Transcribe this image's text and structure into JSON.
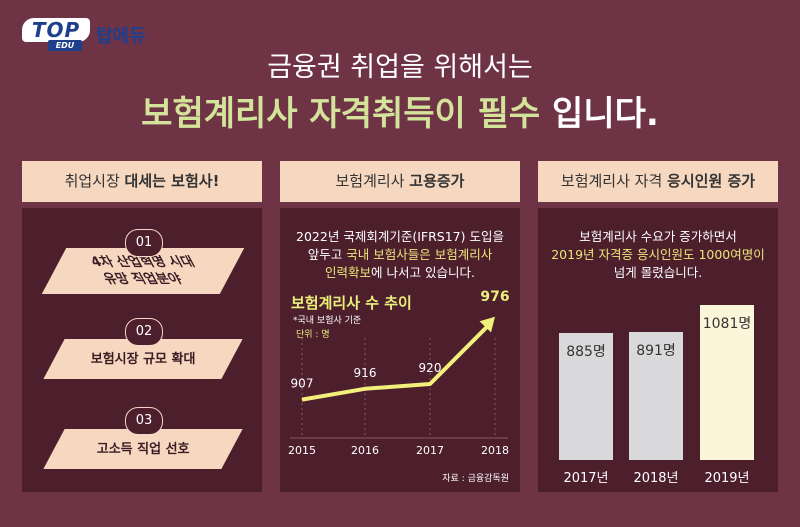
{
  "logo": {
    "mark": "TOP",
    "sub": "EDU",
    "name": "탑에듀"
  },
  "headline": {
    "line1": "금융권 취업을 위해서는",
    "line2_highlight": "보험계리사 자격취득이 필수",
    "line2_rest": " 입니다."
  },
  "colors": {
    "background": "#6f3346",
    "panel": "#4d1e2c",
    "tab": "#f6d7bf",
    "highlight": "#d3e39a",
    "chart_line": "#f2f07a"
  },
  "panel1": {
    "tab_pre": "취업시장 ",
    "tab_strong": "대세는 보험사!",
    "items": [
      {
        "num": "01",
        "line1": "4차 산업혁명 시대",
        "line2": "유망 직업분야"
      },
      {
        "num": "02",
        "line1": "보험시장 규모 확대",
        "line2": ""
      },
      {
        "num": "03",
        "line1": "고소득 직업 선호",
        "line2": ""
      }
    ]
  },
  "panel2": {
    "tab_pre": "보험계리사 ",
    "tab_strong": "고용증가",
    "text1": "2022년 국제회계기준(IFRS17) 도입을",
    "text2_pre": "앞두고 ",
    "text2_hl": "국내 보험사들은 보험계리사",
    "text3_hl": "인력확보",
    "text3_rest": "에 나서고 있습니다.",
    "source": "자료 : 금융감독원"
  },
  "panel3": {
    "tab_pre": "보험계리사 자격 ",
    "tab_strong": "응시인원 증가",
    "text1": "보험계리사 수요가 증가하면서",
    "text2_hl": "2019년 자격증 응시인원도 1000여명이",
    "text3": "넘게 몰렸습니다."
  },
  "chart_data": [
    {
      "type": "line",
      "title": "보험계리사 수 추이",
      "note": "*국내 보험사 기준",
      "unit": "단위 : 명",
      "x": [
        "2015",
        "2016",
        "2017",
        "2018"
      ],
      "values": [
        907,
        916,
        920,
        976
      ],
      "labels": [
        "907",
        "916",
        "920",
        "976"
      ],
      "grid": "vertical dotted"
    },
    {
      "type": "bar",
      "categories": [
        "2017년",
        "2018년",
        "2019년"
      ],
      "values": [
        885,
        891,
        1081
      ],
      "labels": [
        "885명",
        "891명",
        "1081명"
      ],
      "highlight_index": 2
    }
  ]
}
